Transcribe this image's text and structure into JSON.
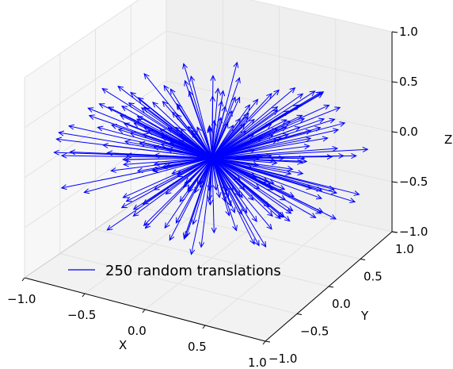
{
  "chart_data": {
    "type": "quiver3d",
    "title": "",
    "xlabel": "X",
    "ylabel": "Y",
    "zlabel": "Z",
    "xlim": [
      -1.0,
      1.0
    ],
    "ylim": [
      -1.0,
      1.0
    ],
    "zlim": [
      -1.0,
      1.0
    ],
    "x_ticks": [
      "−1.0",
      "−0.5",
      "0.0",
      "0.5",
      "1.0"
    ],
    "y_ticks": [
      "−1.0",
      "−0.5",
      "0.0",
      "0.5",
      "1.0"
    ],
    "z_ticks": [
      "−1.0",
      "−0.5",
      "0.0",
      "0.5",
      "1.0"
    ],
    "grid": true,
    "legend": {
      "location": "lower-left",
      "entries": [
        "250 random translations"
      ]
    },
    "series": [
      {
        "name": "250 random translations",
        "color": "#0000ff",
        "count": 250,
        "origin": [
          0,
          0,
          0
        ],
        "vectors": "random unit-ish translations radiating from the origin"
      }
    ]
  }
}
